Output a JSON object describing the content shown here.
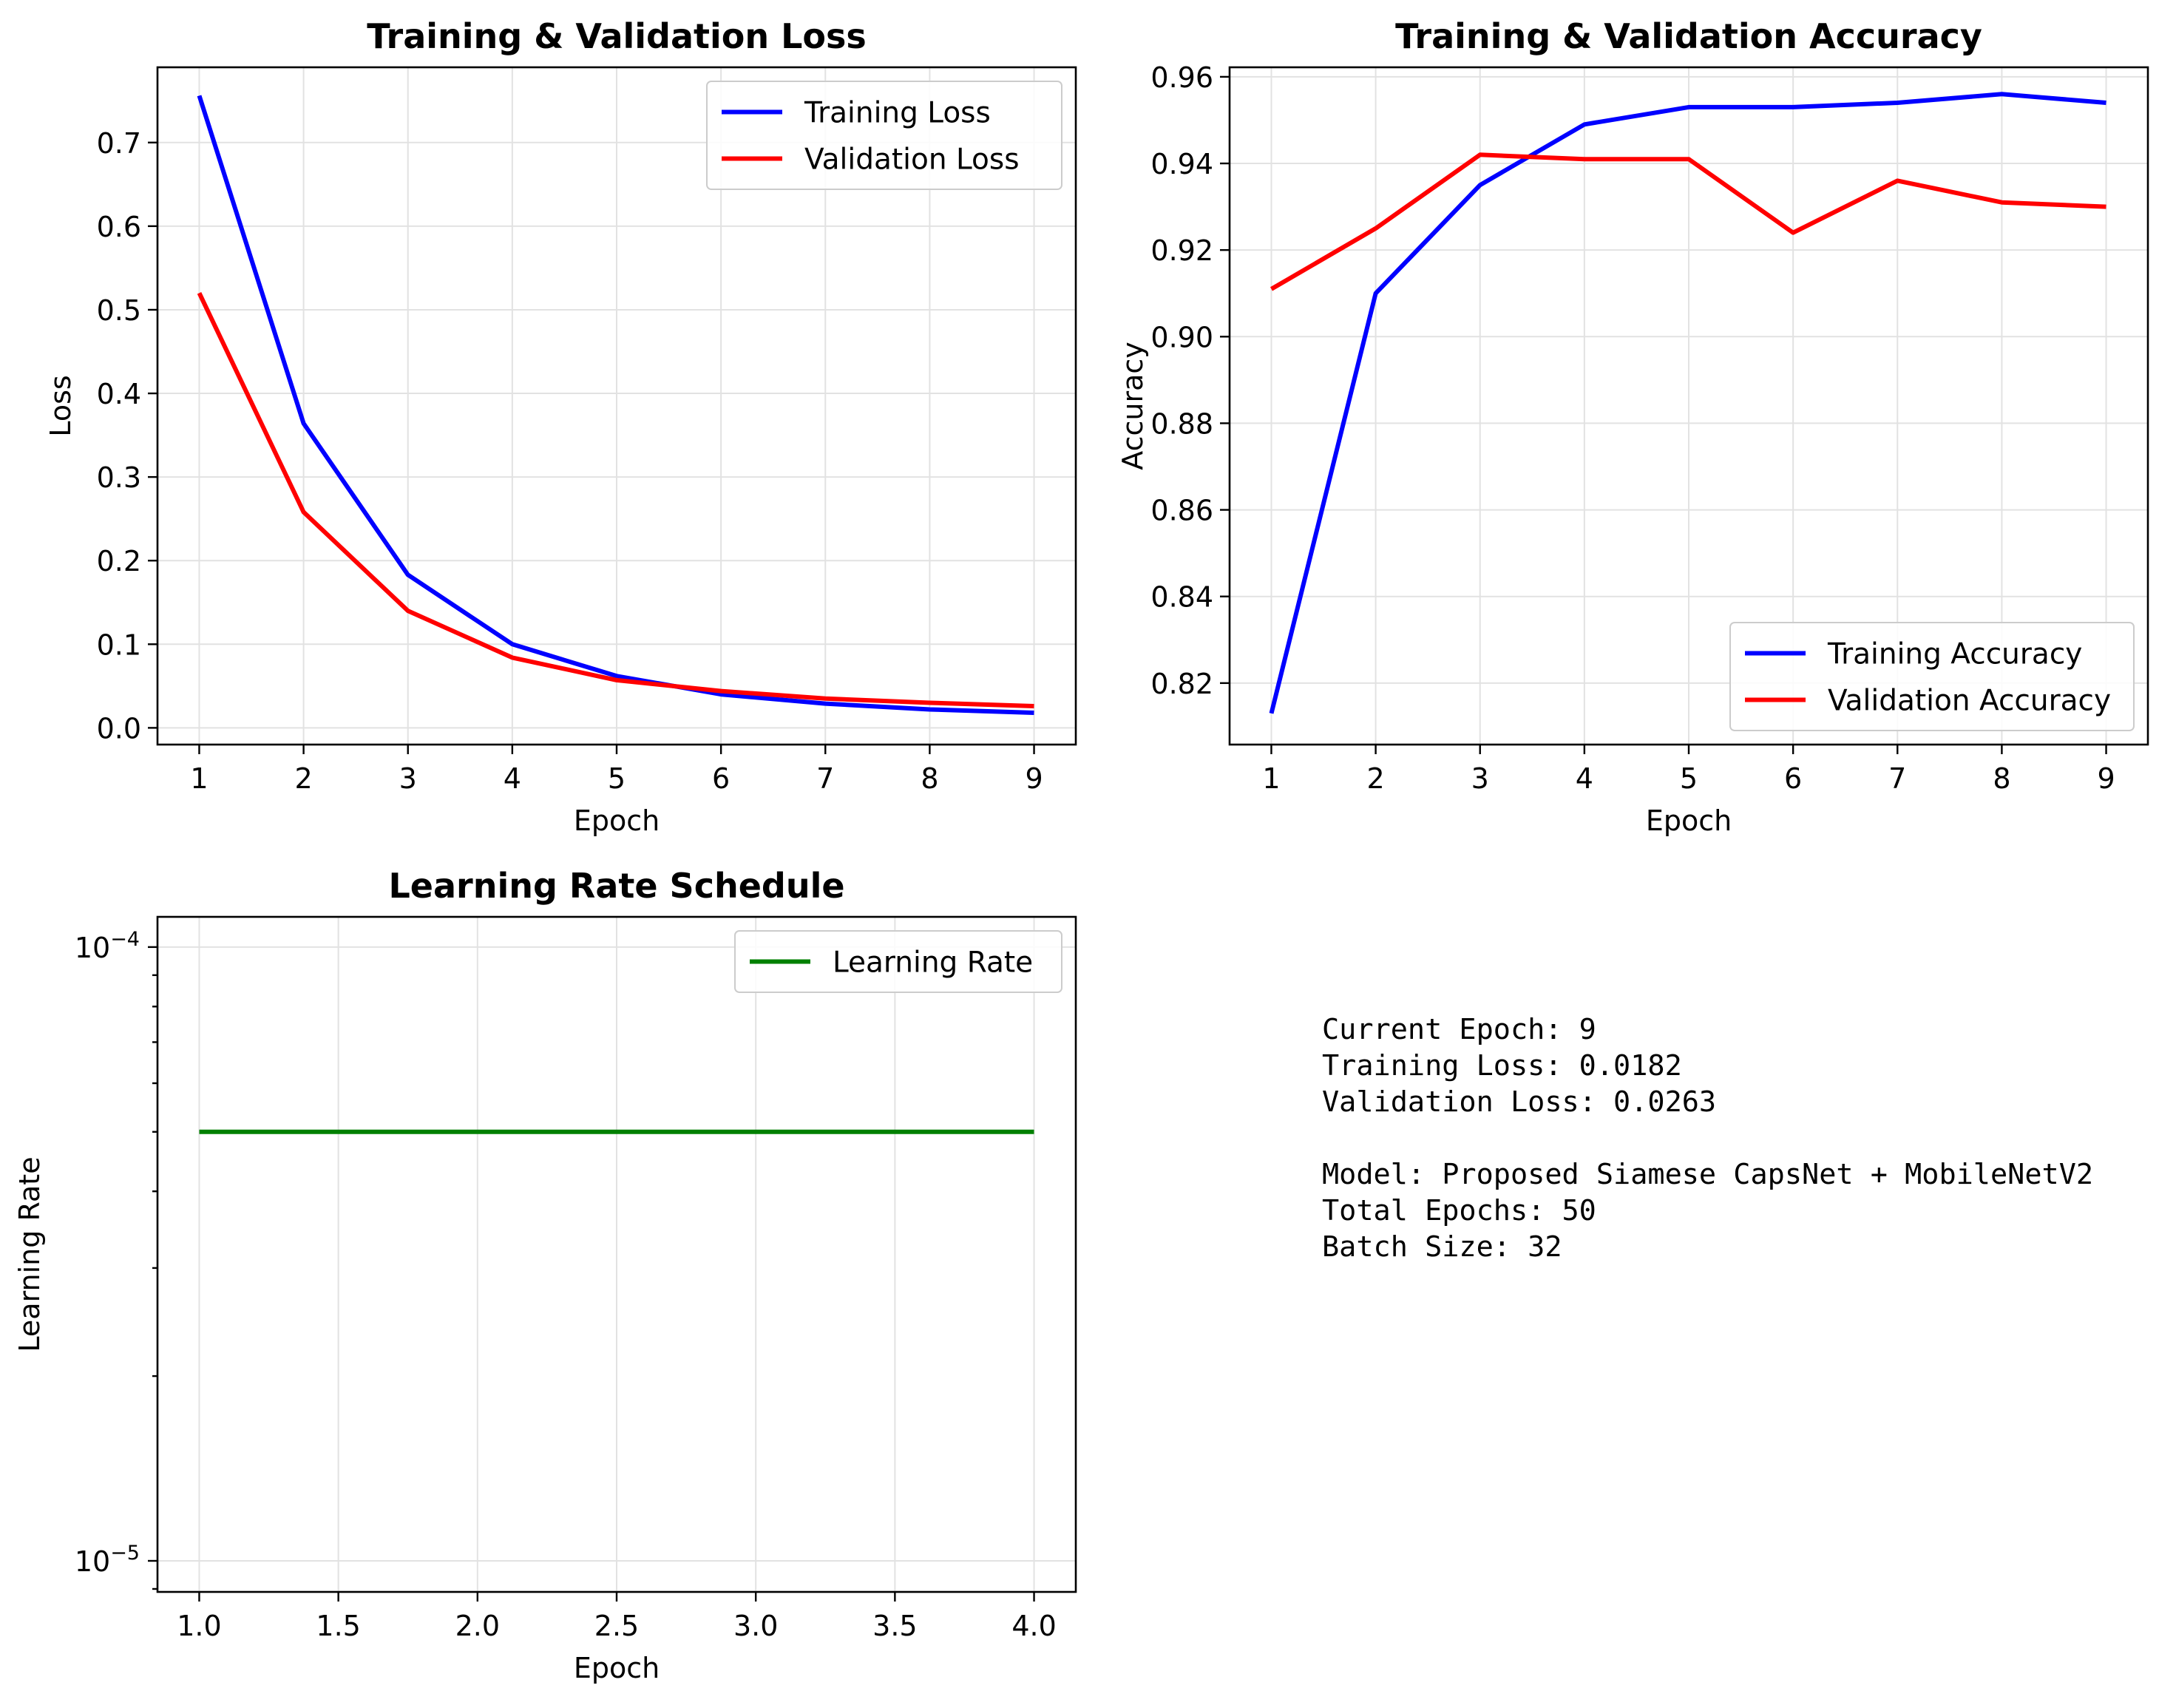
{
  "chart_data": [
    {
      "type": "line",
      "title": "Training & Validation Loss",
      "xlabel": "Epoch",
      "ylabel": "Loss",
      "x": [
        1,
        2,
        3,
        4,
        5,
        6,
        7,
        8,
        9
      ],
      "xlim": [
        0.6,
        9.4
      ],
      "ylim": [
        -0.02,
        0.79
      ],
      "xticks": [
        1,
        2,
        3,
        4,
        5,
        6,
        7,
        8,
        9
      ],
      "yticks": [
        0.0,
        0.1,
        0.2,
        0.3,
        0.4,
        0.5,
        0.6,
        0.7
      ],
      "ytick_labels": [
        "0.0",
        "0.1",
        "0.2",
        "0.3",
        "0.4",
        "0.5",
        "0.6",
        "0.7"
      ],
      "grid": true,
      "legend": "upper right",
      "series": [
        {
          "name": "Training Loss",
          "color": "#0000ff",
          "values": [
            0.756,
            0.364,
            0.183,
            0.1,
            0.062,
            0.04,
            0.029,
            0.022,
            0.018
          ]
        },
        {
          "name": "Validation Loss",
          "color": "#ff0000",
          "values": [
            0.52,
            0.258,
            0.14,
            0.084,
            0.057,
            0.044,
            0.035,
            0.03,
            0.026
          ]
        }
      ]
    },
    {
      "type": "line",
      "title": "Training & Validation Accuracy",
      "xlabel": "Epoch",
      "ylabel": "Accuracy",
      "x": [
        1,
        2,
        3,
        4,
        5,
        6,
        7,
        8,
        9
      ],
      "xlim": [
        0.6,
        9.4
      ],
      "ylim": [
        0.8058,
        0.9622
      ],
      "xticks": [
        1,
        2,
        3,
        4,
        5,
        6,
        7,
        8,
        9
      ],
      "yticks": [
        0.82,
        0.84,
        0.86,
        0.88,
        0.9,
        0.92,
        0.94,
        0.96
      ],
      "ytick_labels": [
        "0.82",
        "0.84",
        "0.86",
        "0.88",
        "0.90",
        "0.92",
        "0.94",
        "0.96"
      ],
      "grid": true,
      "legend": "lower right",
      "series": [
        {
          "name": "Training Accuracy",
          "color": "#0000ff",
          "values": [
            0.813,
            0.91,
            0.935,
            0.949,
            0.953,
            0.953,
            0.954,
            0.956,
            0.954
          ]
        },
        {
          "name": "Validation Accuracy",
          "color": "#ff0000",
          "values": [
            0.911,
            0.925,
            0.942,
            0.941,
            0.941,
            0.924,
            0.936,
            0.931,
            0.93
          ]
        }
      ]
    },
    {
      "type": "line",
      "title": "Learning Rate Schedule",
      "xlabel": "Epoch",
      "ylabel": "Learning Rate",
      "yscale": "log",
      "x": [
        1.0,
        4.0
      ],
      "xlim": [
        0.85,
        4.15
      ],
      "ylim": [
        8.9e-06,
        0.000112
      ],
      "xticks": [
        1.0,
        1.5,
        2.0,
        2.5,
        3.0,
        3.5,
        4.0
      ],
      "yticks": [
        1e-05,
        0.0001
      ],
      "ytick_labels": [
        "10^-5",
        "10^-4"
      ],
      "grid": true,
      "legend": "upper right",
      "series": [
        {
          "name": "Learning Rate",
          "color": "#008000",
          "values": [
            5e-05,
            5e-05
          ]
        }
      ]
    }
  ],
  "summary": {
    "current_epoch": "Current Epoch: 9",
    "training_loss": "Training Loss: 0.0182",
    "validation_loss": "Validation Loss: 0.0263",
    "model": "Model: Proposed Siamese CapsNet + MobileNetV2",
    "total_epochs": "Total Epochs: 50",
    "batch_size": "Batch Size: 32"
  }
}
